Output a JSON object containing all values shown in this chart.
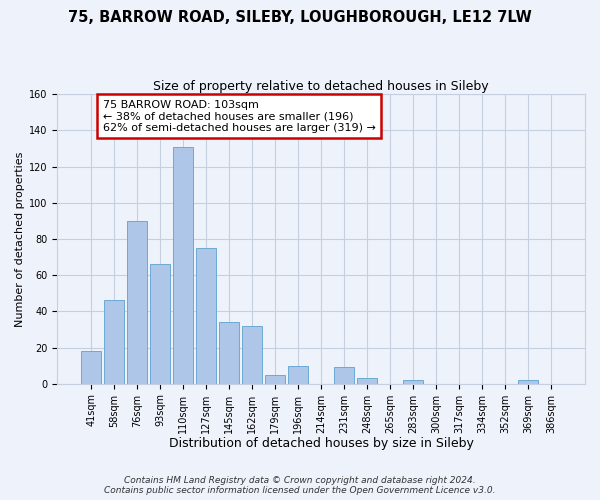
{
  "title": "75, BARROW ROAD, SILEBY, LOUGHBOROUGH, LE12 7LW",
  "subtitle": "Size of property relative to detached houses in Sileby",
  "xlabel": "Distribution of detached houses by size in Sileby",
  "ylabel": "Number of detached properties",
  "categories": [
    "41sqm",
    "58sqm",
    "76sqm",
    "93sqm",
    "110sqm",
    "127sqm",
    "145sqm",
    "162sqm",
    "179sqm",
    "196sqm",
    "214sqm",
    "231sqm",
    "248sqm",
    "265sqm",
    "283sqm",
    "300sqm",
    "317sqm",
    "334sqm",
    "352sqm",
    "369sqm",
    "386sqm"
  ],
  "values": [
    18,
    46,
    90,
    66,
    131,
    75,
    34,
    32,
    5,
    10,
    0,
    9,
    3,
    0,
    2,
    0,
    0,
    0,
    0,
    2,
    0
  ],
  "bar_color": "#aec6e8",
  "bar_edge_color": "#6aaad4",
  "annotation_box_text": "75 BARROW ROAD: 103sqm\n← 38% of detached houses are smaller (196)\n62% of semi-detached houses are larger (319) →",
  "annotation_box_color": "white",
  "annotation_box_edge_color": "#cc0000",
  "ylim": [
    0,
    160
  ],
  "yticks": [
    0,
    20,
    40,
    60,
    80,
    100,
    120,
    140,
    160
  ],
  "footer_line1": "Contains HM Land Registry data © Crown copyright and database right 2024.",
  "footer_line2": "Contains public sector information licensed under the Open Government Licence v3.0.",
  "background_color": "#eef2fb",
  "plot_background_color": "#eef2fb",
  "grid_color": "#c5cfe0",
  "title_fontsize": 10.5,
  "subtitle_fontsize": 9,
  "xlabel_fontsize": 9,
  "ylabel_fontsize": 8,
  "tick_fontsize": 7,
  "footer_fontsize": 6.5,
  "annotation_fontsize": 8
}
